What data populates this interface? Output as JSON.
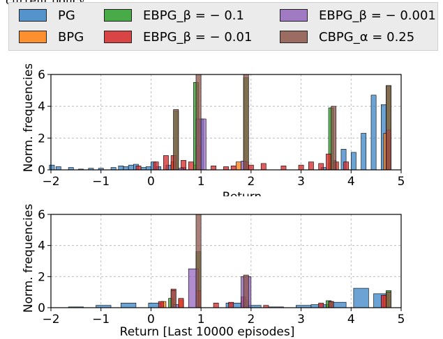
{
  "caption_fragment": "current policy.",
  "legend": {
    "items": [
      {
        "label": "PG",
        "color": "#3b84c7"
      },
      {
        "label": "BPG",
        "color": "#ff7f0e"
      },
      {
        "label": "EBPG_β = − 0.1",
        "color": "#2ca02c"
      },
      {
        "label": "EBPG_β = − 0.01",
        "color": "#d62728"
      },
      {
        "label": "EBPG_β = − 0.001",
        "color": "#9467bd"
      },
      {
        "label": "CBPG_α = 0.25",
        "color": "#8c564b"
      }
    ]
  },
  "chart_data": [
    {
      "type": "bar",
      "subtype": "histogram",
      "xlabel": "Return",
      "ylabel": "Norm. frequencies",
      "xlim": [
        -2,
        5
      ],
      "ylim": [
        0,
        6
      ],
      "xticks": [
        -2,
        -1,
        0,
        1,
        2,
        3,
        4,
        5
      ],
      "yticks": [
        0,
        2,
        4,
        6
      ],
      "grid": true,
      "series": [
        {
          "name": "PG",
          "color": "#3b84c7",
          "bins": [
            [
              -1.98,
              0.3
            ],
            [
              -1.85,
              0.2
            ],
            [
              -1.6,
              0.15
            ],
            [
              -1.4,
              0.05
            ],
            [
              -1.2,
              0.1
            ],
            [
              -1.0,
              0.1
            ],
            [
              -0.75,
              0.15
            ],
            [
              -0.6,
              0.25
            ],
            [
              -0.5,
              0.2
            ],
            [
              -0.4,
              0.3
            ],
            [
              -0.3,
              0.35
            ],
            [
              -0.15,
              0.15
            ],
            [
              -0.05,
              0.2
            ],
            [
              0.05,
              0.5
            ],
            [
              0.15,
              0.2
            ],
            [
              0.35,
              0.3
            ],
            [
              0.65,
              0.15
            ],
            [
              1.0,
              3.2
            ],
            [
              3.45,
              0.15
            ],
            [
              3.65,
              0.6
            ],
            [
              3.85,
              1.3
            ],
            [
              4.05,
              1.1
            ],
            [
              4.25,
              2.3
            ],
            [
              4.45,
              4.7
            ],
            [
              4.65,
              4.1
            ]
          ]
        },
        {
          "name": "BPG",
          "color": "#ff7f0e",
          "bins": [
            [
              0.45,
              0.5
            ],
            [
              0.9,
              0.3
            ],
            [
              1.75,
              0.5
            ],
            [
              3.6,
              0.4
            ],
            [
              4.7,
              2.3
            ]
          ]
        },
        {
          "name": "EBPG_β = − 0.1",
          "color": "#2ca02c",
          "bins": [
            [
              0.5,
              3.7
            ],
            [
              0.9,
              5.5
            ],
            [
              1.9,
              5.8
            ],
            [
              3.6,
              3.9
            ],
            [
              4.75,
              5.3
            ]
          ]
        },
        {
          "name": "EBPG_β = − 0.01",
          "color": "#d62728",
          "bins": [
            [
              -0.25,
              0.25
            ],
            [
              0.1,
              0.5
            ],
            [
              0.3,
              0.9
            ],
            [
              0.45,
              0.9
            ],
            [
              0.65,
              0.6
            ],
            [
              0.8,
              0.5
            ],
            [
              0.95,
              1.5
            ],
            [
              1.25,
              0.25
            ],
            [
              1.5,
              0.2
            ],
            [
              1.65,
              0.25
            ],
            [
              1.9,
              0.5
            ],
            [
              2.0,
              0.3
            ],
            [
              2.25,
              0.4
            ],
            [
              2.65,
              0.25
            ],
            [
              3.0,
              0.3
            ],
            [
              3.2,
              0.5
            ],
            [
              3.4,
              0.4
            ],
            [
              3.55,
              1.0
            ],
            [
              3.7,
              0.5
            ],
            [
              3.9,
              0.5
            ],
            [
              4.75,
              2.5
            ]
          ]
        },
        {
          "name": "EBPG_β = − 0.001",
          "color": "#9467bd",
          "bins": [
            [
              0.6,
              0.1
            ],
            [
              1.0,
              3.2
            ],
            [
              1.85,
              0.55
            ]
          ]
        },
        {
          "name": "CBPG_α = 0.25",
          "color": "#8c564b",
          "bins": [
            [
              0.5,
              3.8
            ],
            [
              0.95,
              6.0
            ],
            [
              1.9,
              6.0
            ],
            [
              3.65,
              4.0
            ],
            [
              4.75,
              5.3
            ]
          ]
        }
      ]
    },
    {
      "type": "bar",
      "subtype": "histogram",
      "xlabel": "Return [Last 10000 episodes]",
      "ylabel": "Norm. frequencies",
      "xlim": [
        -2,
        5
      ],
      "ylim": [
        0,
        6
      ],
      "xticks": [
        -2,
        -1,
        0,
        1,
        2,
        3,
        4,
        5
      ],
      "yticks": [
        0,
        2,
        4,
        6
      ],
      "grid": true,
      "series": [
        {
          "name": "PG",
          "color": "#3b84c7",
          "bins": [
            [
              -1.5,
              0.05
            ],
            [
              -0.95,
              0.15
            ],
            [
              -0.45,
              0.3
            ],
            [
              0.1,
              0.3
            ],
            [
              1.65,
              0.3
            ],
            [
              2.05,
              0.15
            ],
            [
              2.5,
              0.05
            ],
            [
              3.05,
              0.15
            ],
            [
              3.35,
              0.2
            ],
            [
              3.75,
              0.35
            ],
            [
              4.2,
              1.25
            ],
            [
              4.6,
              0.9
            ]
          ]
        },
        {
          "name": "BPG",
          "color": "#ff7f0e",
          "bins": [
            [
              0.25,
              0.4
            ],
            [
              0.6,
              0.5
            ],
            [
              1.85,
              0.4
            ],
            [
              3.55,
              0.2
            ],
            [
              4.7,
              0.8
            ]
          ]
        },
        {
          "name": "EBPG_β = − 0.1",
          "color": "#2ca02c",
          "bins": [
            [
              0.4,
              0.6
            ],
            [
              0.95,
              3.6
            ],
            [
              1.9,
              0.5
            ],
            [
              3.55,
              0.45
            ],
            [
              4.75,
              1.1
            ]
          ]
        },
        {
          "name": "EBPG_β = − 0.01",
          "color": "#d62728",
          "bins": [
            [
              0.2,
              0.4
            ],
            [
              0.45,
              1.2
            ],
            [
              0.6,
              0.6
            ],
            [
              0.95,
              1.1
            ],
            [
              1.3,
              0.3
            ],
            [
              1.6,
              0.35
            ],
            [
              1.85,
              0.7
            ],
            [
              2.3,
              0.15
            ],
            [
              3.4,
              0.3
            ],
            [
              3.6,
              0.4
            ],
            [
              4.65,
              0.8
            ]
          ]
        },
        {
          "name": "EBPG_β = − 0.001",
          "color": "#9467bd",
          "bins": [
            [
              0.5,
              0.2
            ],
            [
              0.85,
              2.5
            ],
            [
              1.9,
              2.0
            ]
          ]
        },
        {
          "name": "CBPG_α = 0.25",
          "color": "#8c564b",
          "bins": [
            [
              0.45,
              1.1
            ],
            [
              0.95,
              7.8
            ],
            [
              1.9,
              2.1
            ],
            [
              3.6,
              0.4
            ],
            [
              4.75,
              1.0
            ]
          ]
        }
      ]
    }
  ]
}
